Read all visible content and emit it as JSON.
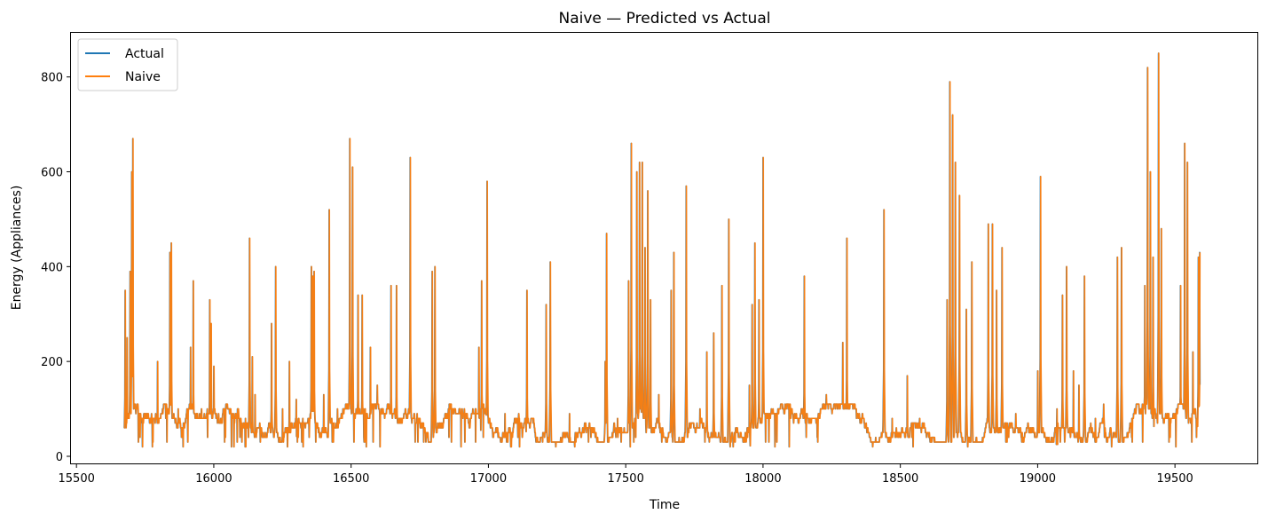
{
  "chart_data": {
    "type": "line",
    "title": "Naive — Predicted vs Actual",
    "xlabel": "Time",
    "ylabel": "Energy (Appliances)",
    "xlim": [
      15480,
      19800
    ],
    "ylim": [
      -15,
      893
    ],
    "x_ticks": [
      15500,
      16000,
      16500,
      17000,
      17500,
      18000,
      18500,
      19000,
      19500
    ],
    "y_ticks": [
      0,
      200,
      400,
      600,
      800
    ],
    "grid": false,
    "legend_position": "upper-left",
    "series": [
      {
        "name": "Actual",
        "color": "#1f77b4"
      },
      {
        "name": "Naive",
        "color": "#ff7f0e"
      }
    ],
    "x_range": [
      15673,
      19591
    ],
    "baseline_band": [
      40,
      90
    ],
    "peaks": [
      [
        15677,
        350
      ],
      [
        15684,
        250
      ],
      [
        15695,
        390
      ],
      [
        15701,
        600
      ],
      [
        15705,
        670
      ],
      [
        15720,
        110
      ],
      [
        15760,
        80
      ],
      [
        15795,
        200
      ],
      [
        15825,
        80
      ],
      [
        15840,
        430
      ],
      [
        15845,
        450
      ],
      [
        15870,
        100
      ],
      [
        15915,
        230
      ],
      [
        15925,
        370
      ],
      [
        15955,
        100
      ],
      [
        15985,
        330
      ],
      [
        15990,
        280
      ],
      [
        16000,
        190
      ],
      [
        16060,
        100
      ],
      [
        16130,
        460
      ],
      [
        16140,
        210
      ],
      [
        16150,
        130
      ],
      [
        16210,
        280
      ],
      [
        16225,
        400
      ],
      [
        16250,
        100
      ],
      [
        16275,
        200
      ],
      [
        16300,
        120
      ],
      [
        16355,
        400
      ],
      [
        16360,
        380
      ],
      [
        16365,
        390
      ],
      [
        16400,
        130
      ],
      [
        16420,
        520
      ],
      [
        16450,
        100
      ],
      [
        16495,
        670
      ],
      [
        16505,
        610
      ],
      [
        16525,
        340
      ],
      [
        16540,
        340
      ],
      [
        16570,
        230
      ],
      [
        16595,
        150
      ],
      [
        16645,
        360
      ],
      [
        16665,
        360
      ],
      [
        16715,
        630
      ],
      [
        16740,
        90
      ],
      [
        16795,
        390
      ],
      [
        16805,
        400
      ],
      [
        16840,
        80
      ],
      [
        16965,
        230
      ],
      [
        16975,
        370
      ],
      [
        16995,
        580
      ],
      [
        17060,
        90
      ],
      [
        17140,
        350
      ],
      [
        17210,
        320
      ],
      [
        17225,
        410
      ],
      [
        17295,
        90
      ],
      [
        17385,
        60
      ],
      [
        17425,
        200
      ],
      [
        17430,
        470
      ],
      [
        17470,
        80
      ],
      [
        17510,
        370
      ],
      [
        17520,
        660
      ],
      [
        17540,
        600
      ],
      [
        17550,
        620
      ],
      [
        17560,
        620
      ],
      [
        17570,
        440
      ],
      [
        17580,
        560
      ],
      [
        17590,
        330
      ],
      [
        17620,
        130
      ],
      [
        17665,
        350
      ],
      [
        17675,
        430
      ],
      [
        17720,
        570
      ],
      [
        17770,
        100
      ],
      [
        17795,
        220
      ],
      [
        17820,
        260
      ],
      [
        17850,
        360
      ],
      [
        17875,
        500
      ],
      [
        17950,
        150
      ],
      [
        17960,
        320
      ],
      [
        17970,
        450
      ],
      [
        17985,
        330
      ],
      [
        18000,
        630
      ],
      [
        18030,
        100
      ],
      [
        18100,
        80
      ],
      [
        18150,
        380
      ],
      [
        18230,
        130
      ],
      [
        18290,
        240
      ],
      [
        18305,
        460
      ],
      [
        18340,
        80
      ],
      [
        18440,
        520
      ],
      [
        18470,
        80
      ],
      [
        18525,
        170
      ],
      [
        18570,
        80
      ],
      [
        18670,
        330
      ],
      [
        18680,
        790
      ],
      [
        18690,
        720
      ],
      [
        18700,
        620
      ],
      [
        18715,
        550
      ],
      [
        18740,
        310
      ],
      [
        18760,
        410
      ],
      [
        18820,
        490
      ],
      [
        18835,
        490
      ],
      [
        18850,
        350
      ],
      [
        18870,
        440
      ],
      [
        18920,
        90
      ],
      [
        19000,
        180
      ],
      [
        19010,
        590
      ],
      [
        19070,
        100
      ],
      [
        19090,
        340
      ],
      [
        19105,
        400
      ],
      [
        19130,
        180
      ],
      [
        19150,
        150
      ],
      [
        19170,
        380
      ],
      [
        19210,
        80
      ],
      [
        19240,
        110
      ],
      [
        19290,
        420
      ],
      [
        19305,
        440
      ],
      [
        19390,
        360
      ],
      [
        19400,
        820
      ],
      [
        19410,
        600
      ],
      [
        19420,
        420
      ],
      [
        19440,
        850
      ],
      [
        19450,
        480
      ],
      [
        19520,
        360
      ],
      [
        19535,
        660
      ],
      [
        19545,
        620
      ],
      [
        19565,
        220
      ],
      [
        19585,
        420
      ],
      [
        19590,
        430
      ]
    ]
  }
}
